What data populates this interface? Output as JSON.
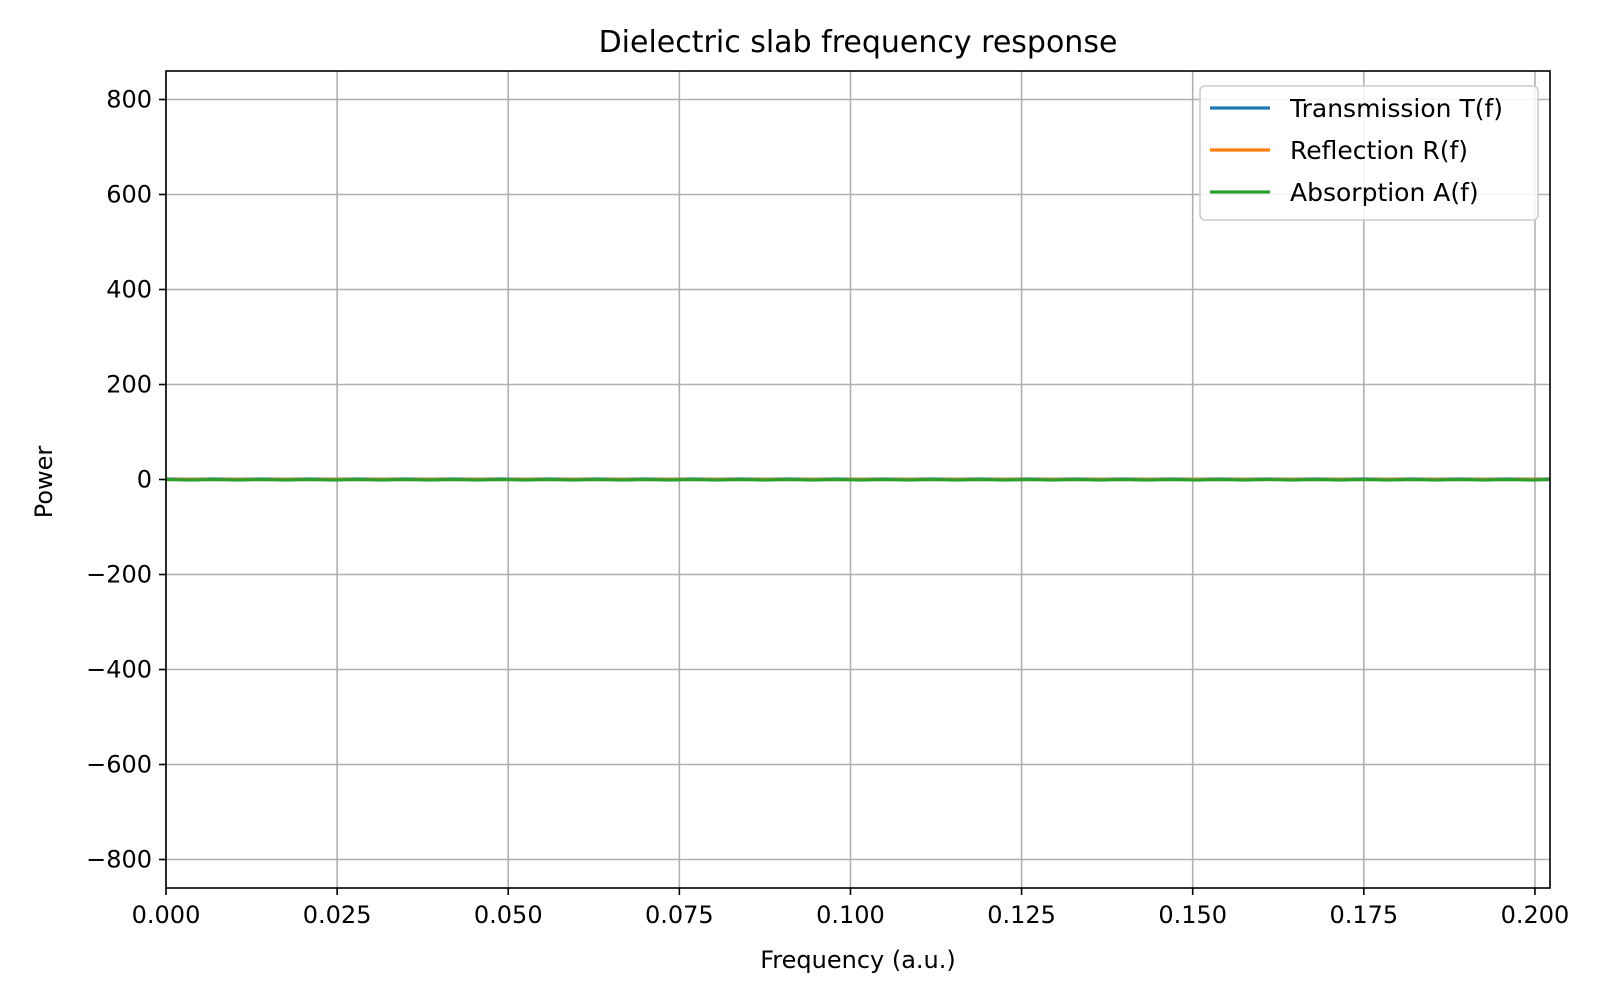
{
  "chart_data": {
    "type": "line",
    "title": "Dielectric slab frequency response",
    "xlabel": "Frequency (a.u.)",
    "ylabel": "Power",
    "xlim": [
      0.0,
      0.2022
    ],
    "ylim": [
      -860,
      860
    ],
    "xticks": [
      0.0,
      0.025,
      0.05,
      0.075,
      0.1,
      0.125,
      0.15,
      0.175,
      0.2
    ],
    "xtick_labels": [
      "0.000",
      "0.025",
      "0.050",
      "0.075",
      "0.100",
      "0.125",
      "0.150",
      "0.175",
      "0.200"
    ],
    "yticks": [
      800,
      600,
      400,
      200,
      0,
      -200,
      -400,
      -600,
      -800
    ],
    "ytick_labels": [
      "800",
      "600",
      "400",
      "200",
      "0",
      "−200",
      "−400",
      "−600",
      "−800"
    ],
    "grid": true,
    "legend_position": "top-right",
    "series": [
      {
        "name": "Transmission T(f)",
        "color": "#1f77b4",
        "note": "oscillates near 1",
        "x": [
          0.0,
          0.0035,
          0.007,
          0.0105,
          0.014,
          0.0175,
          0.021,
          0.0245,
          0.028,
          0.0315,
          0.035,
          0.0385,
          0.042,
          0.0455,
          0.049,
          0.0525,
          0.056,
          0.0595,
          0.063,
          0.0665,
          0.07,
          0.0735,
          0.077,
          0.0805,
          0.084,
          0.0875,
          0.091,
          0.0945,
          0.098,
          0.1015,
          0.105,
          0.1085,
          0.112,
          0.1155,
          0.119,
          0.1225,
          0.126,
          0.1295,
          0.133,
          0.1365,
          0.14,
          0.1435,
          0.147,
          0.1505,
          0.154,
          0.1575,
          0.161,
          0.1645,
          0.168,
          0.1715,
          0.175,
          0.1785,
          0.182,
          0.1855,
          0.189,
          0.1925,
          0.196,
          0.1995,
          0.2022
        ],
        "y": [
          1,
          0.6,
          1,
          0.6,
          1,
          0.6,
          1,
          0.6,
          1,
          0.6,
          1,
          0.6,
          1,
          0.6,
          1,
          0.6,
          1,
          0.6,
          1,
          0.6,
          1,
          0.6,
          1,
          0.6,
          1,
          0.6,
          1,
          0.6,
          1,
          0.6,
          1,
          0.6,
          1,
          0.6,
          1,
          0.6,
          1,
          0.6,
          1,
          0.6,
          1,
          0.6,
          1,
          0.6,
          1,
          0.6,
          1,
          0.6,
          1,
          0.6,
          1,
          0.6,
          1,
          0.6,
          1,
          0.6,
          1,
          0.6,
          1
        ]
      },
      {
        "name": "Reflection R(f)",
        "color": "#ff7f0e",
        "x": [
          0.0,
          0.0035,
          0.007,
          0.0105,
          0.014,
          0.0175,
          0.021,
          0.0245,
          0.028,
          0.0315,
          0.035,
          0.0385,
          0.042,
          0.0455,
          0.049,
          0.0525,
          0.056,
          0.0595,
          0.063,
          0.0665,
          0.07,
          0.0735,
          0.077,
          0.0805,
          0.084,
          0.0875,
          0.091,
          0.0945,
          0.098,
          0.1015,
          0.105,
          0.1085,
          0.112,
          0.1155,
          0.119,
          0.1225,
          0.126,
          0.1295,
          0.133,
          0.1365,
          0.14,
          0.1435,
          0.147,
          0.1505,
          0.154,
          0.1575,
          0.161,
          0.1645,
          0.168,
          0.1715,
          0.175,
          0.1785,
          0.182,
          0.1855,
          0.189,
          0.1925,
          0.196,
          0.1995,
          0.2022
        ],
        "y": [
          0,
          0.4,
          0,
          0.4,
          0,
          0.4,
          0,
          0.4,
          0,
          0.4,
          0,
          0.4,
          0,
          0.4,
          0,
          0.4,
          0,
          0.4,
          0,
          0.4,
          0,
          0.4,
          0,
          0.4,
          0,
          0.4,
          0,
          0.4,
          0,
          0.4,
          0,
          0.4,
          0,
          0.4,
          0,
          0.4,
          0,
          0.4,
          0,
          0.4,
          0,
          0.4,
          0,
          0.4,
          0,
          0.4,
          0,
          0.4,
          0,
          0.4,
          0,
          0.4,
          0,
          0.4,
          0,
          0.4,
          0,
          0.4,
          0
        ]
      },
      {
        "name": "Absorption A(f)",
        "color": "#2ca02c",
        "x": [
          0.0,
          0.0035,
          0.007,
          0.0105,
          0.014,
          0.0175,
          0.021,
          0.0245,
          0.028,
          0.0315,
          0.035,
          0.0385,
          0.042,
          0.0455,
          0.049,
          0.0525,
          0.056,
          0.0595,
          0.063,
          0.0665,
          0.07,
          0.0735,
          0.077,
          0.0805,
          0.084,
          0.0875,
          0.091,
          0.0945,
          0.098,
          0.1015,
          0.105,
          0.1085,
          0.112,
          0.1155,
          0.119,
          0.1225,
          0.126,
          0.1295,
          0.133,
          0.1365,
          0.14,
          0.1435,
          0.147,
          0.1505,
          0.154,
          0.1575,
          0.161,
          0.1645,
          0.168,
          0.1715,
          0.175,
          0.1785,
          0.182,
          0.1855,
          0.189,
          0.1925,
          0.196,
          0.1995,
          0.2022
        ],
        "y": [
          0,
          -1.2,
          0,
          -1.2,
          0,
          -1.2,
          0,
          -1.2,
          0,
          -1.2,
          0,
          -1.2,
          0,
          -1.2,
          0,
          -1.2,
          0,
          -1.2,
          0,
          -1.2,
          0,
          -1.2,
          0,
          -1.2,
          0,
          -1.2,
          0,
          -1.2,
          0,
          -1.2,
          0,
          -1.2,
          0,
          -1.2,
          0,
          -1.2,
          0,
          -1.2,
          0,
          -1.2,
          0,
          -1.2,
          0,
          -1.2,
          0,
          -1.2,
          0,
          -1.2,
          0,
          -1.2,
          0,
          -1.2,
          0,
          -1.2,
          0,
          -1.2,
          0,
          -1.2,
          0
        ]
      }
    ]
  }
}
